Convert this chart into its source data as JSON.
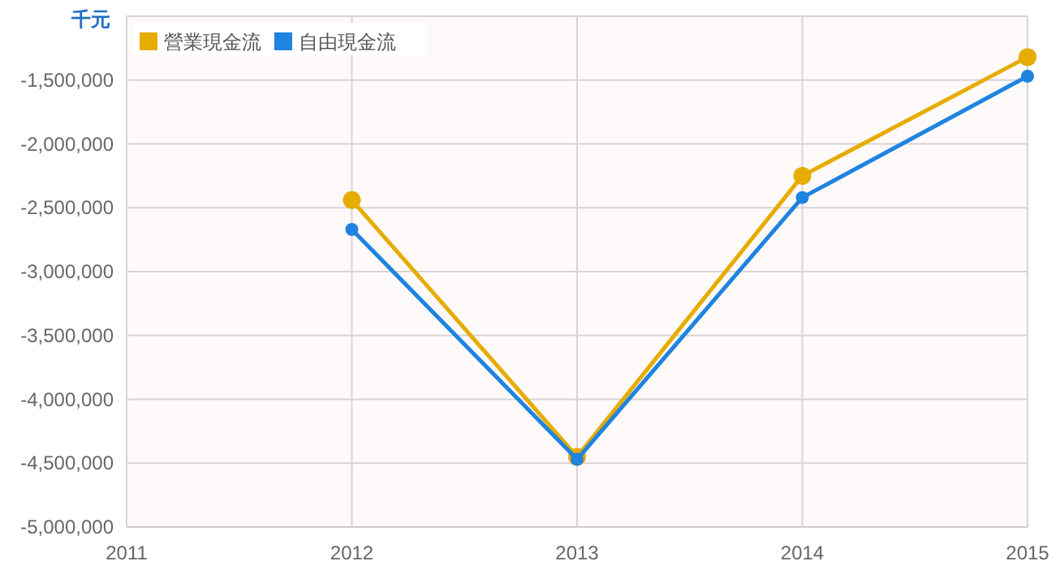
{
  "chart_data": {
    "type": "line",
    "ylabel": "千元",
    "x": [
      2012,
      2013,
      2014,
      2015
    ],
    "series": [
      {
        "name": "營業現金流",
        "color": "#e6ac00",
        "values": [
          -2440000,
          -4450000,
          -2250000,
          -1320000
        ]
      },
      {
        "name": "自由現金流",
        "color": "#1f83e0",
        "values": [
          -2670000,
          -4470000,
          -2420000,
          -1470000
        ]
      }
    ],
    "xlim": [
      2011,
      2015
    ],
    "xticks": [
      2011,
      2012,
      2013,
      2014,
      2015
    ],
    "ylim": [
      -5000000,
      -1000000
    ],
    "yticks": [
      {
        "value": -5000000,
        "label": "-5,000,000"
      },
      {
        "value": -4500000,
        "label": "-4,500,000"
      },
      {
        "value": -4000000,
        "label": "-4,000,000"
      },
      {
        "value": -3500000,
        "label": "-3,500,000"
      },
      {
        "value": -3000000,
        "label": "-3,000,000"
      },
      {
        "value": -2500000,
        "label": "-2,500,000"
      },
      {
        "value": -2000000,
        "label": "-2,000,000"
      },
      {
        "value": -1500000,
        "label": "-1,500,000"
      },
      {
        "value": -1000000,
        "label": null
      }
    ],
    "grid": true,
    "legend": "top left",
    "marker": "circle",
    "line_style": "solid"
  }
}
